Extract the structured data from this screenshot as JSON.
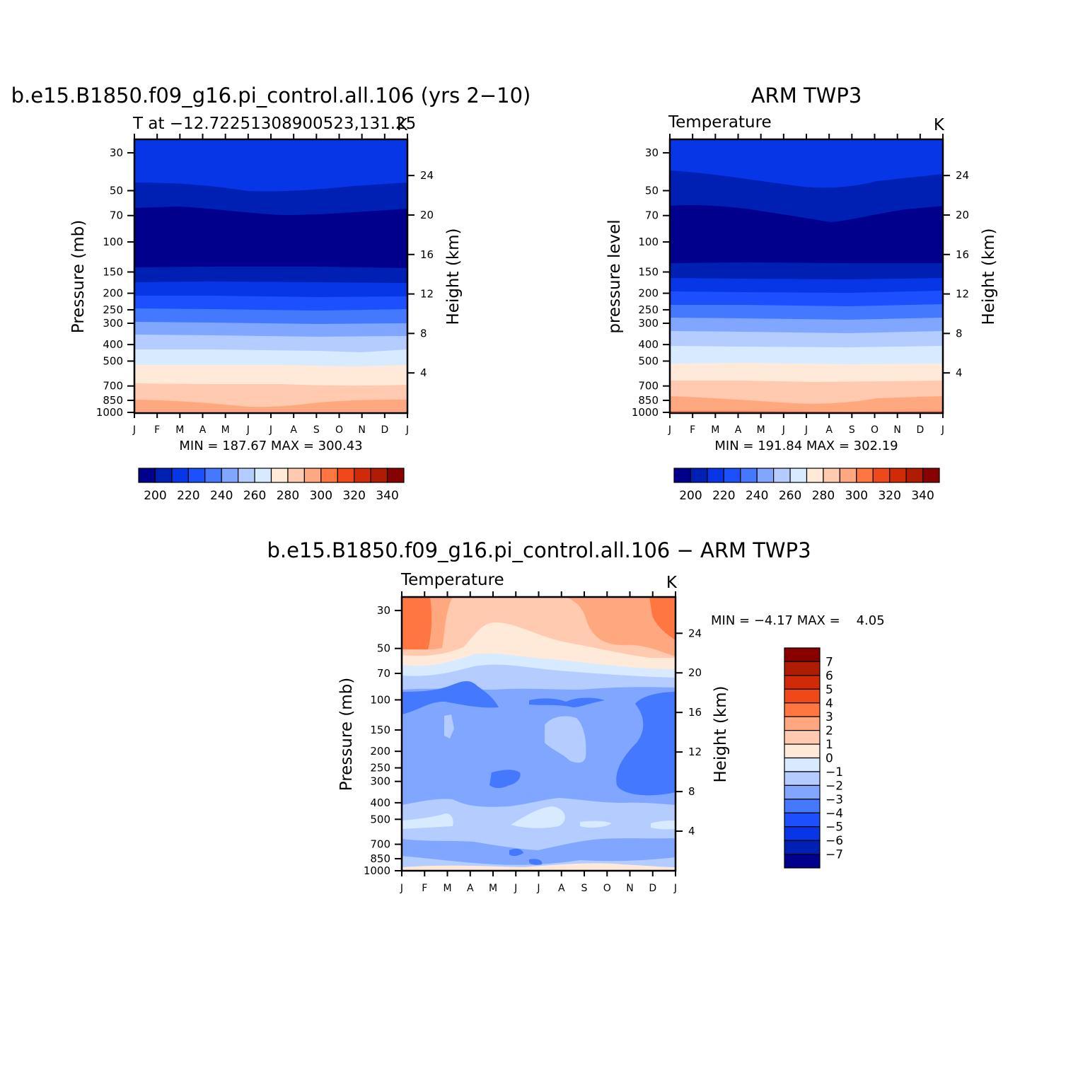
{
  "month_labels": [
    "J",
    "F",
    "M",
    "A",
    "M",
    "J",
    "J",
    "A",
    "S",
    "O",
    "N",
    "D",
    "J"
  ],
  "pressure_ticks": [
    30,
    50,
    70,
    100,
    150,
    200,
    250,
    300,
    400,
    500,
    700,
    850,
    1000
  ],
  "height_ticks": [
    24,
    20,
    16,
    12,
    8,
    4
  ],
  "panels": [
    {
      "id": "model",
      "title": "b.e15.B1850.f09_g16.pi_control.all.106 (yrs 2−10)",
      "left_label": "T at −12.72251308900523,131.25",
      "right_label": "K",
      "ylabel": "Pressure (mb)",
      "y2label": "Height (km)",
      "stats": "MIN = 187.67 MAX = 300.43",
      "colorbar_labels": [
        "200",
        "220",
        "240",
        "260",
        "280",
        "300",
        "320",
        "340"
      ]
    },
    {
      "id": "obs",
      "title": "ARM TWP3",
      "left_label": "Temperature",
      "right_label": "K",
      "ylabel": "pressure level",
      "y2label": "Height (km)",
      "stats": "MIN = 191.84 MAX = 302.19",
      "colorbar_labels": [
        "200",
        "220",
        "240",
        "260",
        "280",
        "300",
        "320",
        "340"
      ]
    },
    {
      "id": "diff",
      "title": "b.e15.B1850.f09_g16.pi_control.all.106 − ARM TWP3",
      "left_label": "Temperature",
      "right_label": "K",
      "ylabel": "Pressure (mb)",
      "y2label": "Height (km)",
      "stats": "MIN = −4.17 MAX =    4.05",
      "colorbar_labels": [
        "7",
        "6",
        "5",
        "4",
        "3",
        "2",
        "1",
        "0",
        "−1",
        "−2",
        "−3",
        "−4",
        "−5",
        "−6",
        "−7"
      ]
    }
  ],
  "chart_data": [
    {
      "type": "heatmap",
      "title": "b.e15.B1850.f09_g16.pi_control.all.106 (yrs 2−10)",
      "subtitle": "T at −12.72251308900523,131.25",
      "units": "K",
      "xlabel": "",
      "ylabel": "Pressure (mb)",
      "y2label": "Height (km)",
      "x": [
        "J",
        "F",
        "M",
        "A",
        "M",
        "J",
        "J",
        "A",
        "S",
        "O",
        "N",
        "D",
        "J"
      ],
      "y_scale": "log-pressure",
      "ylim": [
        1000,
        25
      ],
      "contour_levels": [
        195,
        200,
        210,
        220,
        230,
        240,
        250,
        260,
        270,
        280,
        290,
        300,
        310,
        320,
        330
      ],
      "contour_colors": [
        "#00008c",
        "#0020b4",
        "#0636e6",
        "#1c50ff",
        "#4478ff",
        "#80a6ff",
        "#b4ccff",
        "#d8eaff",
        "#ffeada",
        "#ffcab0",
        "#ffa880",
        "#ff7640",
        "#f04818",
        "#d02a08",
        "#b01c00",
        "#880000"
      ],
      "bands": [
        {
          "value_range": "230-240",
          "p_top": 25,
          "p_bottom": 42
        },
        {
          "value_range": "210-220",
          "p_top": 42,
          "p_bottom": 66
        },
        {
          "value_range": "<200",
          "p_top": 66,
          "p_bottom": 140
        },
        {
          "value_range": "200-210",
          "p_top": 140,
          "p_bottom": 180
        },
        {
          "value_range": "210-220",
          "p_top": 180,
          "p_bottom": 215
        },
        {
          "value_range": "220-230",
          "p_top": 215,
          "p_bottom": 265
        },
        {
          "value_range": "230-240",
          "p_top": 265,
          "p_bottom": 320
        },
        {
          "value_range": "240-250",
          "p_top": 320,
          "p_bottom": 390
        },
        {
          "value_range": "250-260",
          "p_top": 390,
          "p_bottom": 480
        },
        {
          "value_range": "260-270",
          "p_top": 480,
          "p_bottom": 590
        },
        {
          "value_range": "270-280",
          "p_top": 590,
          "p_bottom": 770
        },
        {
          "value_range": "280-290",
          "p_top": 770,
          "p_bottom": 930
        },
        {
          "value_range": "290-300",
          "p_top": 930,
          "p_bottom": 1000
        }
      ],
      "min": 187.67,
      "max": 300.43,
      "colorbar_ticks": [
        200,
        220,
        240,
        260,
        280,
        300,
        320,
        340
      ]
    },
    {
      "type": "heatmap",
      "title": "ARM TWP3",
      "subtitle": "Temperature",
      "units": "K",
      "xlabel": "",
      "ylabel": "pressure level",
      "y2label": "Height (km)",
      "x": [
        "J",
        "F",
        "M",
        "A",
        "M",
        "J",
        "J",
        "A",
        "S",
        "O",
        "N",
        "D",
        "J"
      ],
      "y_scale": "log-pressure",
      "ylim": [
        1000,
        25
      ],
      "bands": [
        {
          "value_range": "230-240",
          "p_top": 25,
          "p_bottom": 40
        },
        {
          "value_range": "210-220",
          "p_top": 40,
          "p_bottom": 64
        },
        {
          "value_range": "<200",
          "p_top": 64,
          "p_bottom": 135
        },
        {
          "value_range": "200-210",
          "p_top": 135,
          "p_bottom": 175
        },
        {
          "value_range": "210-220",
          "p_top": 175,
          "p_bottom": 215
        },
        {
          "value_range": "220-230",
          "p_top": 215,
          "p_bottom": 260
        },
        {
          "value_range": "230-240",
          "p_top": 260,
          "p_bottom": 315
        },
        {
          "value_range": "240-250",
          "p_top": 315,
          "p_bottom": 385
        },
        {
          "value_range": "250-260",
          "p_top": 385,
          "p_bottom": 470
        },
        {
          "value_range": "260-270",
          "p_top": 470,
          "p_bottom": 580
        },
        {
          "value_range": "270-280",
          "p_top": 580,
          "p_bottom": 750
        },
        {
          "value_range": "280-290",
          "p_top": 750,
          "p_bottom": 900
        },
        {
          "value_range": "290-300",
          "p_top": 900,
          "p_bottom": 1000
        }
      ],
      "min": 191.84,
      "max": 302.19,
      "colorbar_ticks": [
        200,
        220,
        240,
        260,
        280,
        300,
        320,
        340
      ]
    },
    {
      "type": "heatmap",
      "title": "b.e15.B1850.f09_g16.pi_control.all.106 − ARM TWP3",
      "subtitle": "Temperature",
      "units": "K",
      "xlabel": "",
      "ylabel": "Pressure (mb)",
      "y2label": "Height (km)",
      "x": [
        "J",
        "F",
        "M",
        "A",
        "M",
        "J",
        "J",
        "A",
        "S",
        "O",
        "N",
        "D",
        "J"
      ],
      "y_scale": "log-pressure",
      "ylim": [
        1000,
        25
      ],
      "contour_levels": [
        -7,
        -6,
        -5,
        -4,
        -3,
        -2,
        -1,
        0,
        1,
        2,
        3,
        4,
        5,
        6,
        7
      ],
      "contour_colors": [
        "#00008c",
        "#0020b4",
        "#0636e6",
        "#1c50ff",
        "#4478ff",
        "#80a6ff",
        "#b4ccff",
        "#d8eaff",
        "#ffeada",
        "#ffcab0",
        "#ffa880",
        "#ff7640",
        "#f04818",
        "#d02a08",
        "#b01c00",
        "#880000"
      ],
      "bands": [
        {
          "value_range": "1 to 2",
          "p_top": 25,
          "p_bottom": 58
        },
        {
          "value_range": "0 to 1",
          "p_top": 58,
          "p_bottom": 68
        },
        {
          "value_range": "-1 to 0",
          "p_top": 68,
          "p_bottom": 74
        },
        {
          "value_range": "-2 to -1",
          "p_top": 74,
          "p_bottom": 82
        },
        {
          "value_range": "-3 to -2",
          "p_top": 82,
          "p_bottom": 430
        },
        {
          "value_range": "-2 to -1",
          "p_top": 430,
          "p_bottom": 950
        },
        {
          "value_range": "0 to 1",
          "p_top": 950,
          "p_bottom": 1000
        }
      ],
      "min": -4.17,
      "max": 4.05,
      "colorbar_ticks": [
        7,
        6,
        5,
        4,
        3,
        2,
        1,
        0,
        -1,
        -2,
        -3,
        -4,
        -5,
        -6,
        -7
      ]
    }
  ]
}
